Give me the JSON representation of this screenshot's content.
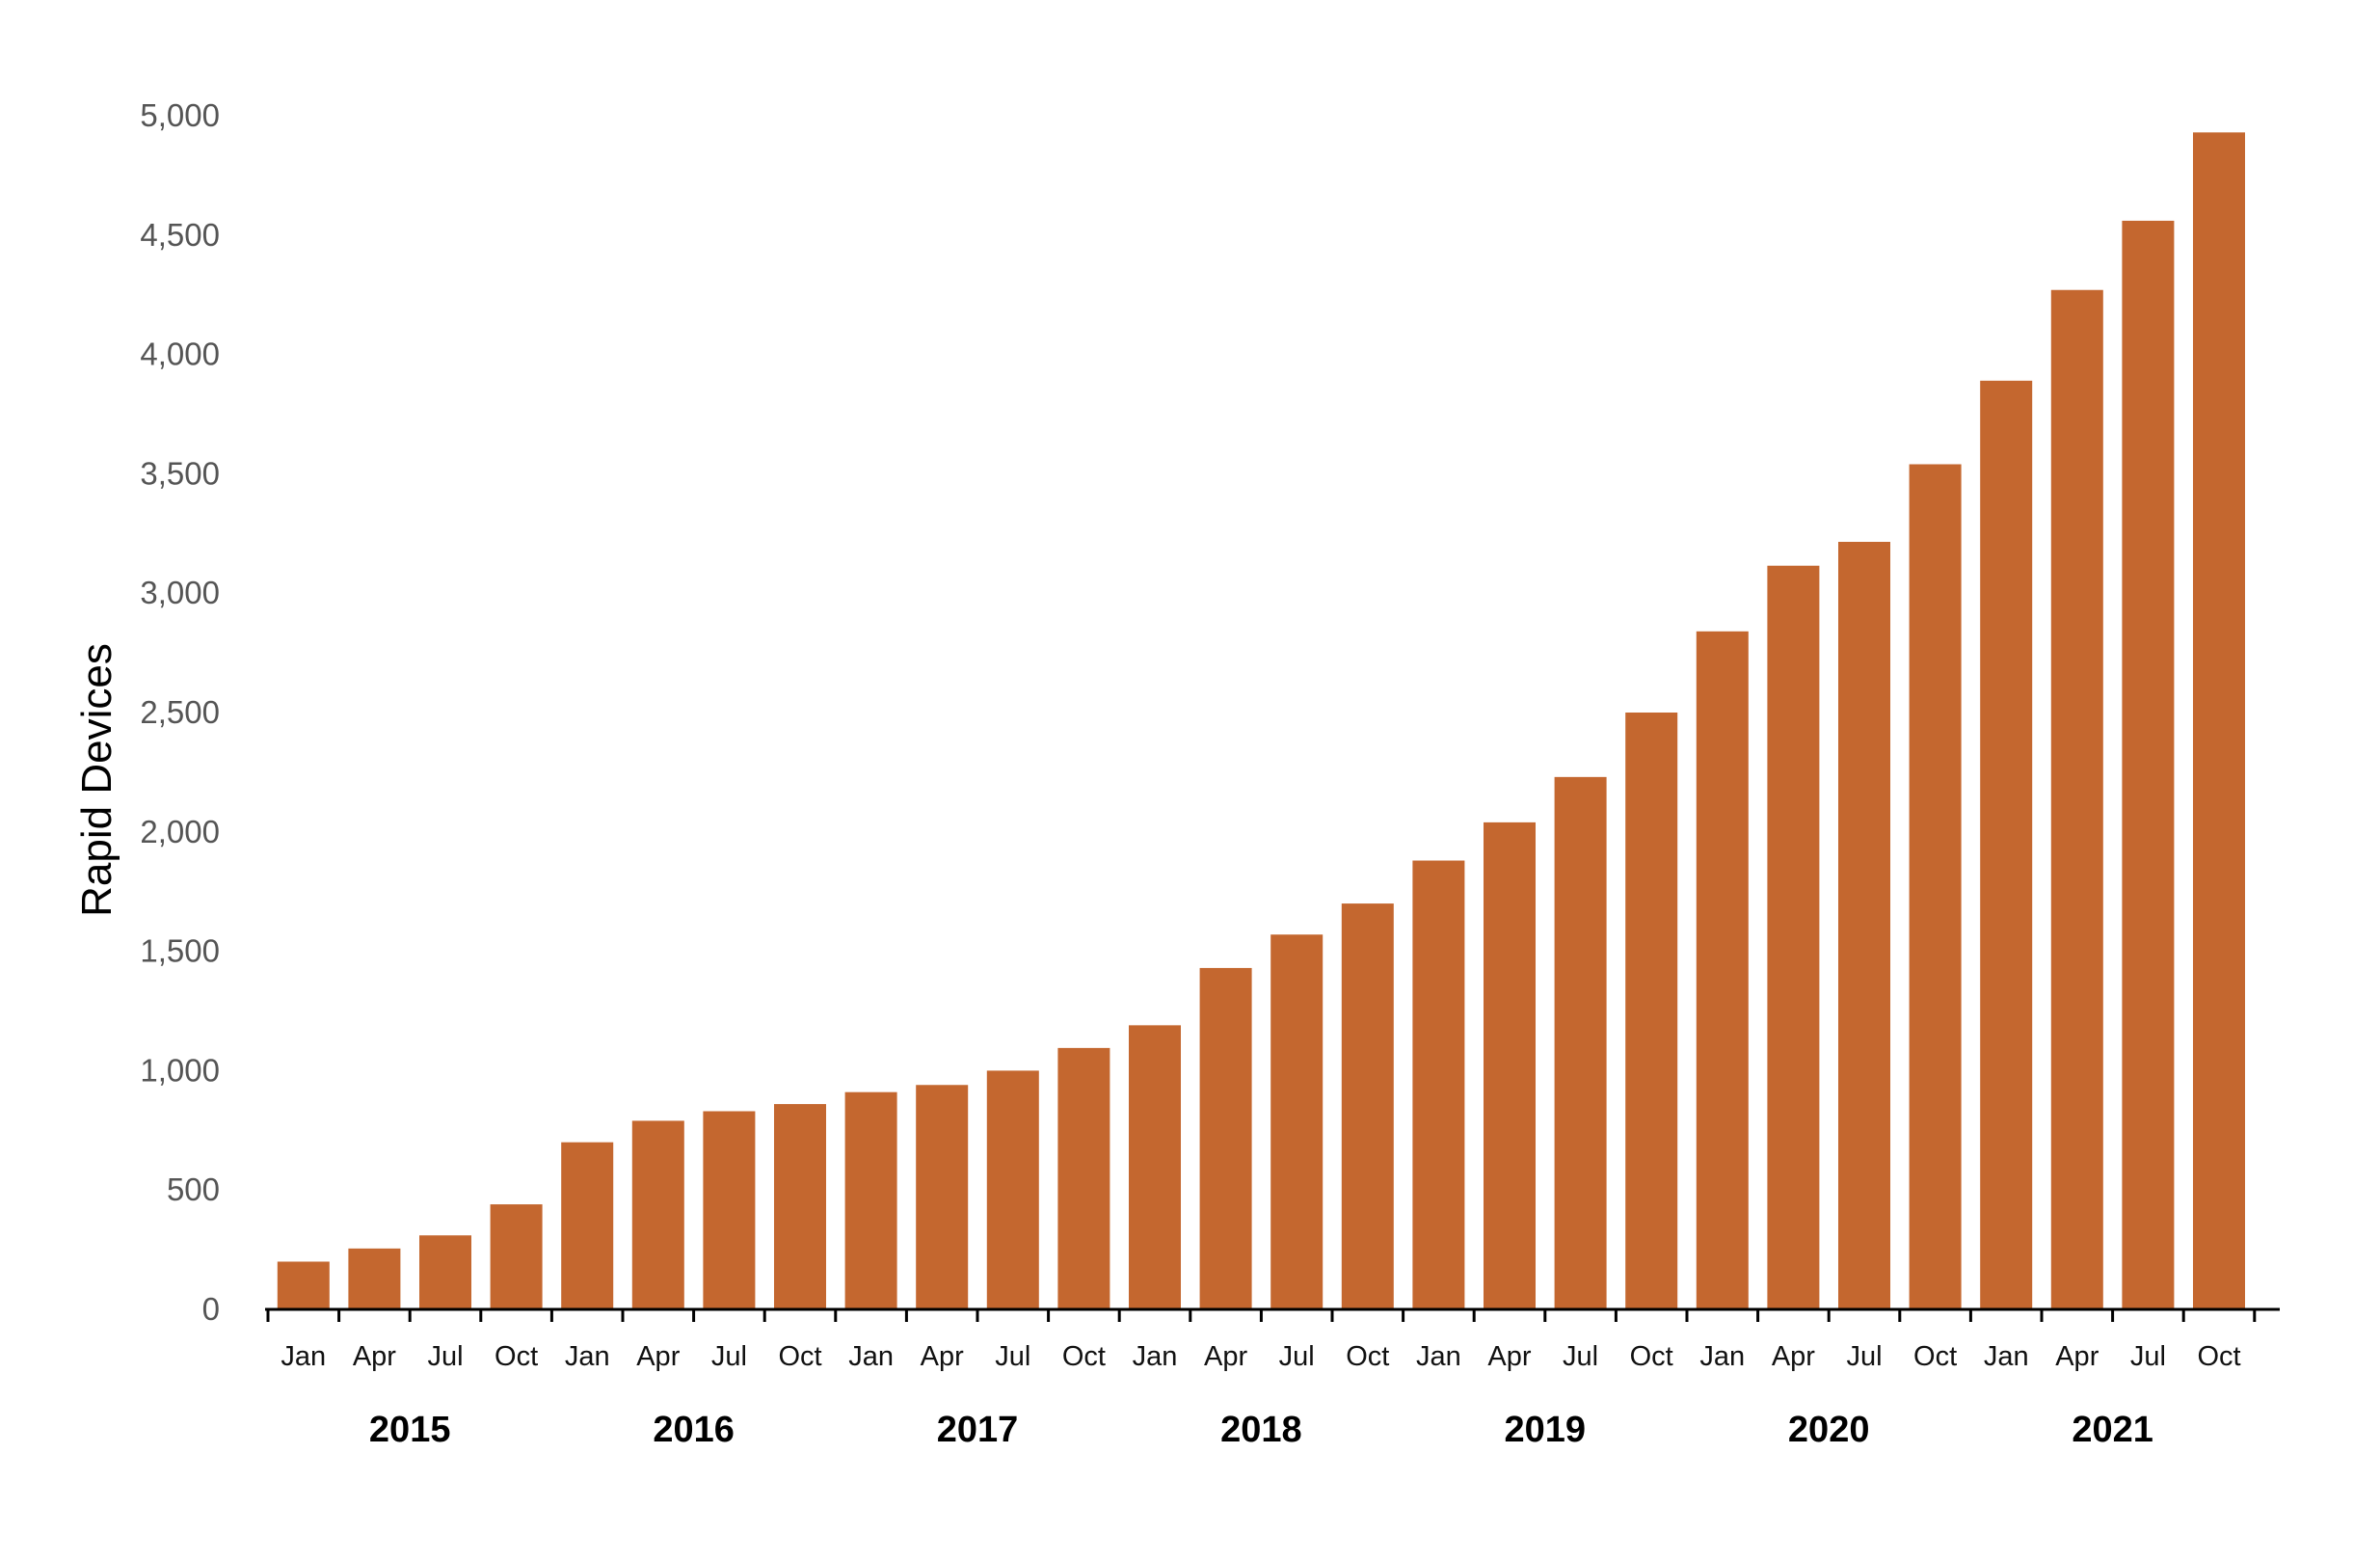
{
  "chart_data": {
    "type": "bar",
    "title": "",
    "xlabel": "",
    "ylabel": "Rapid Devices",
    "ylim": [
      0,
      5000
    ],
    "yticks": [
      0,
      500,
      1000,
      1500,
      2000,
      2500,
      3000,
      3500,
      4000,
      4500,
      5000
    ],
    "ytick_labels": [
      "0",
      "500",
      "1,000",
      "1,500",
      "2,000",
      "2,500",
      "3,000",
      "3,500",
      "4,000",
      "4,500",
      "5,000"
    ],
    "grid": false,
    "bar_color": "#C4672F",
    "categories": [
      "Jan",
      "Apr",
      "Jul",
      "Oct",
      "Jan",
      "Apr",
      "Jul",
      "Oct",
      "Jan",
      "Apr",
      "Jul",
      "Oct",
      "Jan",
      "Apr",
      "Jul",
      "Oct",
      "Jan",
      "Apr",
      "Jul",
      "Oct",
      "Jan",
      "Apr",
      "Jul",
      "Oct",
      "Jan",
      "Apr",
      "Jul",
      "Oct"
    ],
    "year_groups": [
      {
        "label": "2015",
        "count": 4
      },
      {
        "label": "2016",
        "count": 4
      },
      {
        "label": "2017",
        "count": 4
      },
      {
        "label": "2018",
        "count": 4
      },
      {
        "label": "2019",
        "count": 4
      },
      {
        "label": "2020",
        "count": 4
      },
      {
        "label": "2021",
        "count": 4
      }
    ],
    "values": [
      200,
      255,
      310,
      440,
      700,
      790,
      830,
      860,
      910,
      940,
      1000,
      1095,
      1190,
      1430,
      1570,
      1700,
      1880,
      2040,
      2230,
      2500,
      2840,
      3115,
      3215,
      3540,
      3890,
      4270,
      4560,
      4930
    ]
  }
}
